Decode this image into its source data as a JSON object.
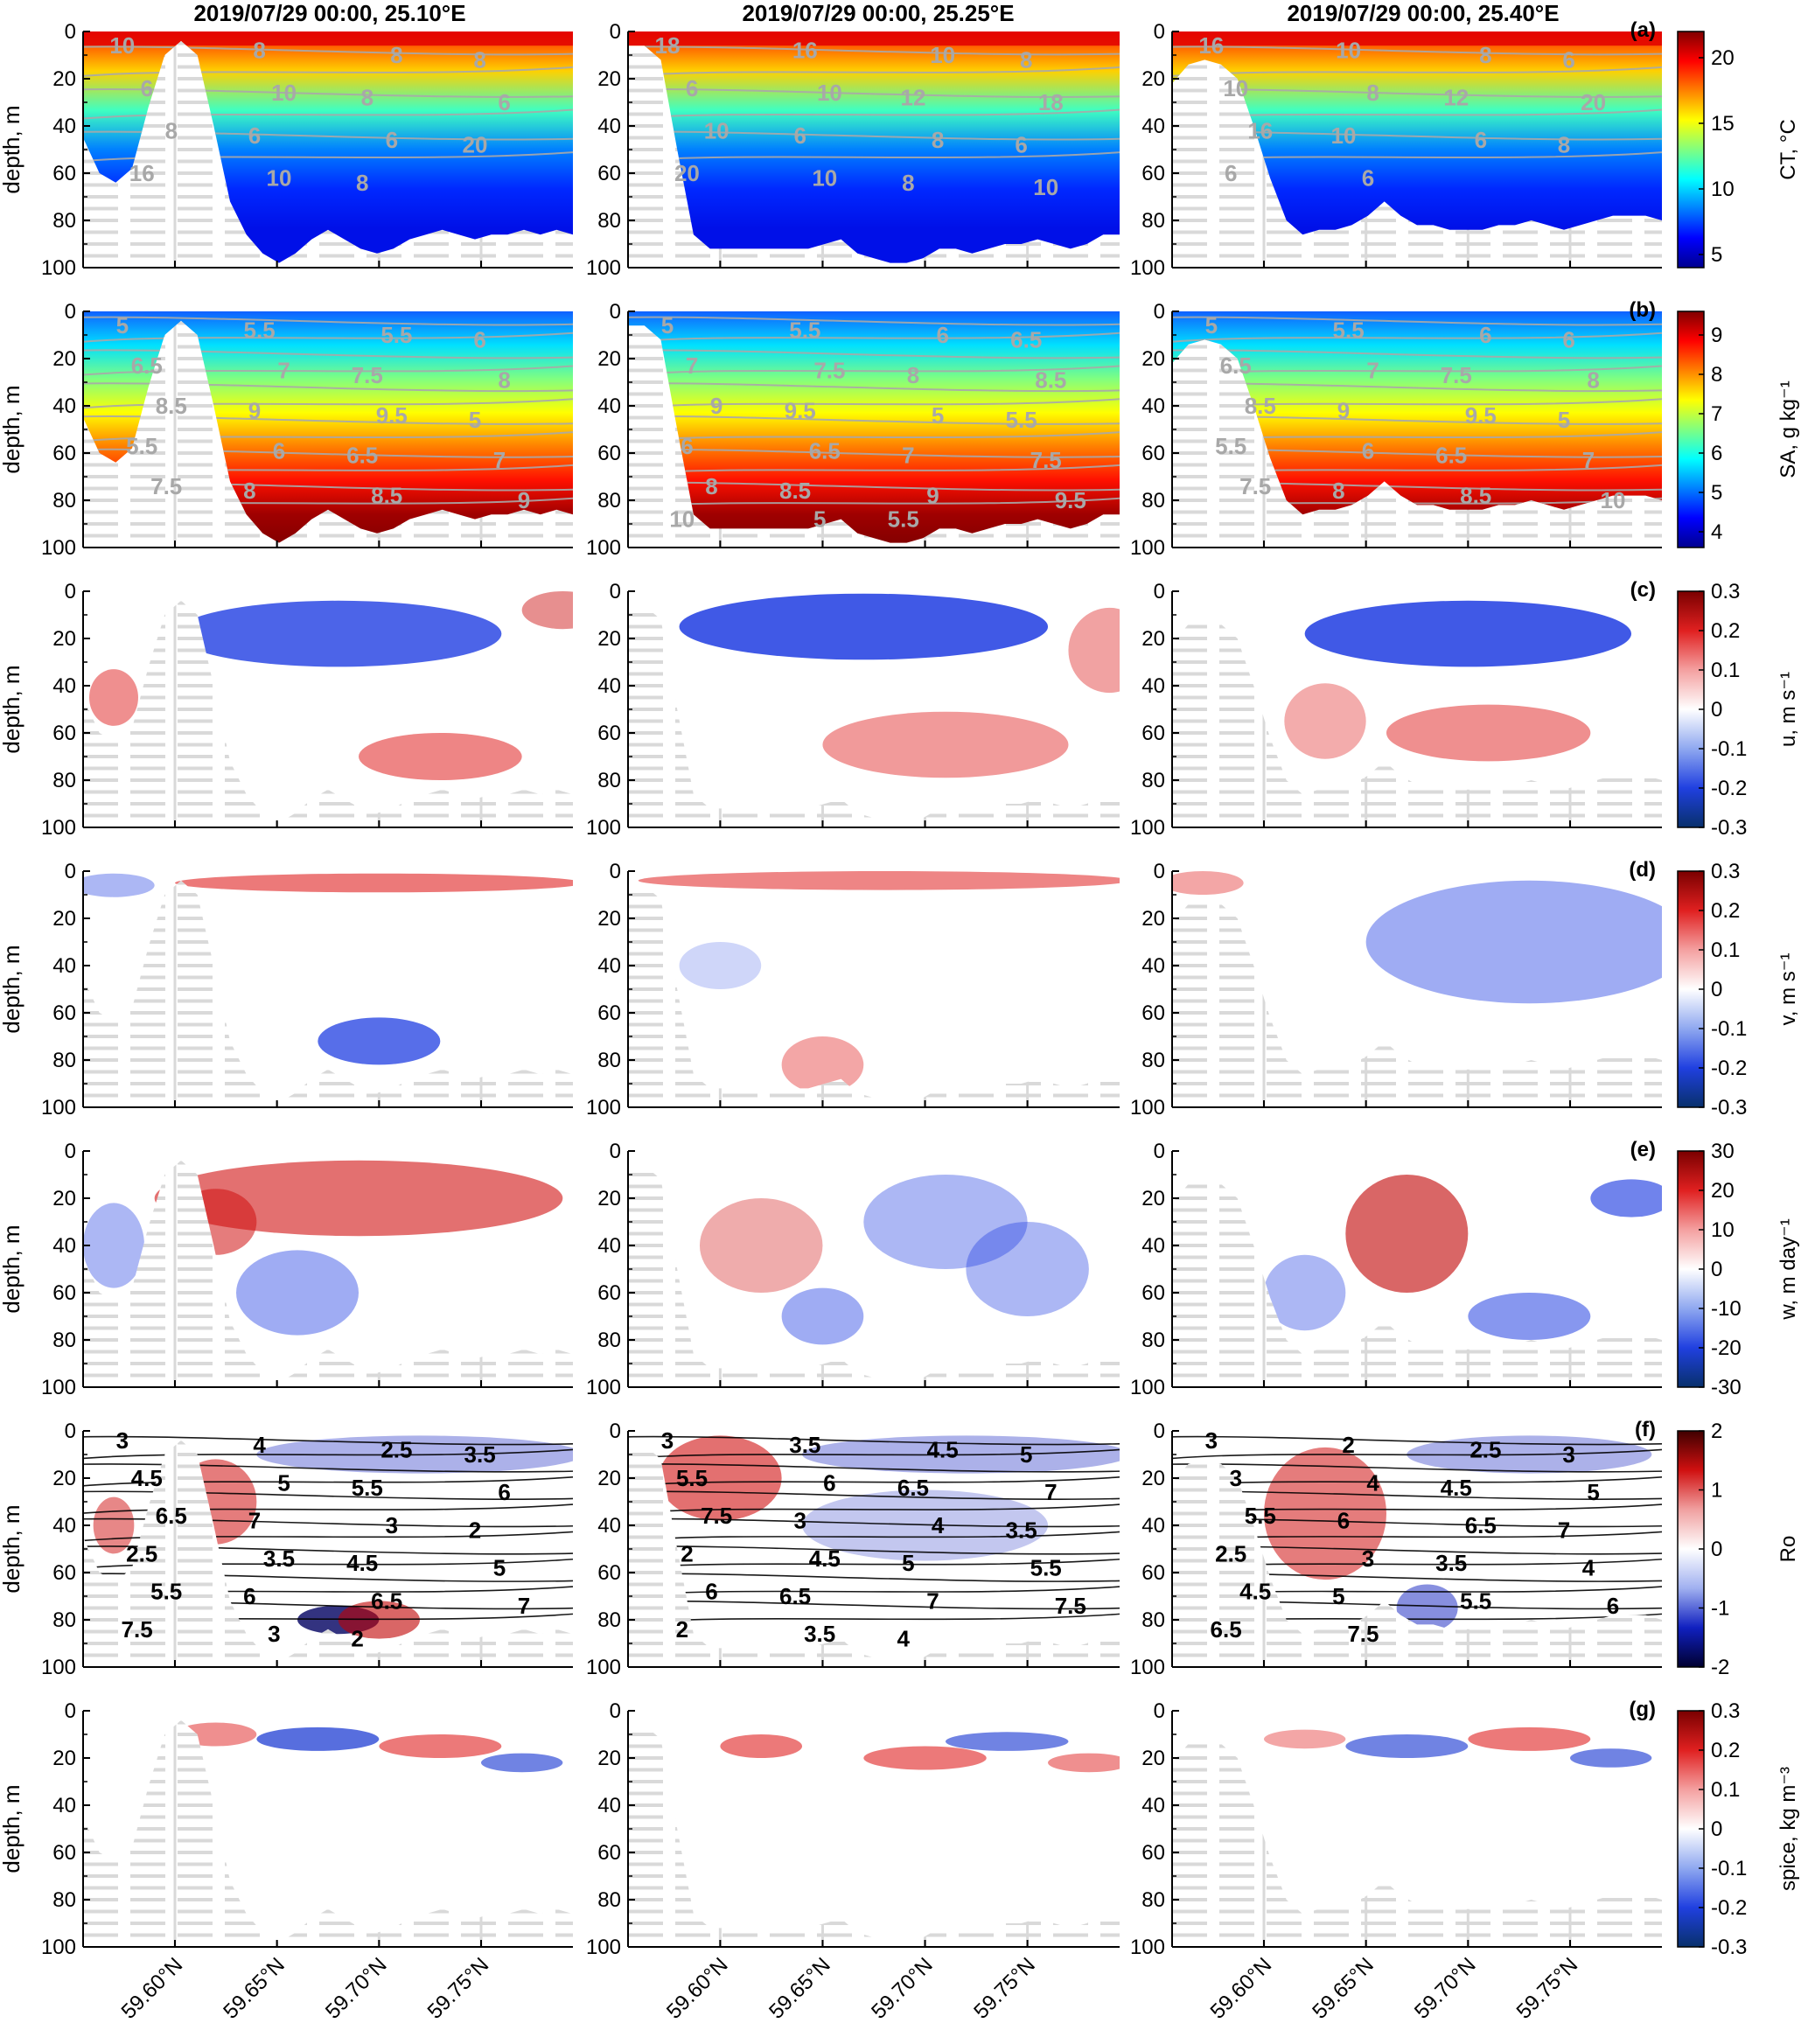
{
  "figure": {
    "columns": [
      {
        "title": "2019/07/29 00:00, 25.10°E"
      },
      {
        "title": "2019/07/29 00:00, 25.25°E"
      },
      {
        "title": "2019/07/29 00:00, 25.40°E"
      }
    ],
    "y_axis_label": "depth, m",
    "y_ticks": [
      "0",
      "20",
      "40",
      "60",
      "80",
      "100"
    ],
    "x_ticks": [
      "59.60°N",
      "59.65°N",
      "59.70°N",
      "59.75°N"
    ]
  },
  "chart_data": {
    "type": "heatmap",
    "x": {
      "units": "°N",
      "ticks": [
        59.6,
        59.65,
        59.7,
        59.75
      ],
      "range": [
        59.555,
        59.795
      ]
    },
    "y": {
      "label": "depth, m",
      "range": [
        0,
        100
      ],
      "reversed": true,
      "ticks": [
        0,
        20,
        40,
        60,
        80,
        100
      ]
    },
    "bottom_depth_m": [
      [
        45,
        60,
        64,
        58,
        32,
        10,
        4,
        10,
        40,
        72,
        86,
        94,
        98,
        94,
        88,
        84,
        88,
        92,
        94,
        92,
        88,
        86,
        84,
        86,
        88,
        86,
        86,
        84,
        86,
        84,
        86
      ],
      [
        6,
        6,
        12,
        50,
        86,
        92,
        92,
        92,
        92,
        92,
        92,
        92,
        90,
        88,
        94,
        96,
        98,
        98,
        96,
        92,
        92,
        94,
        92,
        90,
        90,
        88,
        90,
        92,
        90,
        86,
        86
      ],
      [
        22,
        14,
        12,
        14,
        20,
        40,
        62,
        80,
        86,
        84,
        84,
        82,
        78,
        72,
        78,
        82,
        82,
        84,
        84,
        84,
        82,
        82,
        80,
        82,
        84,
        82,
        80,
        78,
        78,
        78,
        80
      ]
    ],
    "panels": [
      {
        "tag": "(a)",
        "variable": "CT",
        "colorbar_label": "CT, °C",
        "colorbar_ticks": [
          "5",
          "10",
          "15",
          "20"
        ],
        "colorbar_range": [
          4,
          22
        ],
        "colormap": "jet",
        "contour_labels": [
          [
            "10",
            "8",
            "8",
            "8",
            "6",
            "10",
            "8",
            "6",
            "8",
            "6",
            "6",
            "20",
            "16",
            "10",
            "8"
          ],
          [
            "18",
            "16",
            "10",
            "8",
            "6",
            "10",
            "12",
            "18",
            "10",
            "6",
            "8",
            "6",
            "20",
            "10",
            "8",
            "10"
          ],
          [
            "16",
            "10",
            "8",
            "6",
            "10",
            "8",
            "12",
            "20",
            "16",
            "10",
            "6",
            "8",
            "6",
            "6"
          ]
        ]
      },
      {
        "tag": "(b)",
        "variable": "SA",
        "colorbar_label": "SA, g kg⁻¹",
        "colorbar_ticks": [
          "4",
          "5",
          "6",
          "7",
          "8",
          "9"
        ],
        "colorbar_range": [
          3.6,
          9.6
        ],
        "colormap": "jet",
        "contour_labels": [
          [
            "5",
            "5.5",
            "5.5",
            "6",
            "6.5",
            "7",
            "7.5",
            "8",
            "8.5",
            "9",
            "9.5",
            "5",
            "5.5",
            "6",
            "6.5",
            "7",
            "7.5",
            "8",
            "8.5",
            "9"
          ],
          [
            "5",
            "5.5",
            "6",
            "6.5",
            "7",
            "7.5",
            "8",
            "8.5",
            "9",
            "9.5",
            "5",
            "5.5",
            "6",
            "6.5",
            "7",
            "7.5",
            "8",
            "8.5",
            "9",
            "9.5",
            "10",
            "5",
            "5.5"
          ],
          [
            "5",
            "5.5",
            "6",
            "6",
            "6.5",
            "7",
            "7.5",
            "8",
            "8.5",
            "9",
            "9.5",
            "5",
            "5.5",
            "6",
            "6.5",
            "7",
            "7.5",
            "8",
            "8.5",
            "10"
          ]
        ]
      },
      {
        "tag": "(c)",
        "variable": "u",
        "colorbar_label": "u, m s⁻¹",
        "colorbar_ticks": [
          "0.3",
          "0.2",
          "0.1",
          "0",
          "-0.1",
          "-0.2",
          "-0.3"
        ],
        "colorbar_range": [
          -0.3,
          0.3
        ],
        "colormap": "blue-white-red"
      },
      {
        "tag": "(d)",
        "variable": "v",
        "colorbar_label": "v, m s⁻¹",
        "colorbar_ticks": [
          "0.3",
          "0.2",
          "0.1",
          "0",
          "-0.1",
          "-0.2",
          "-0.3"
        ],
        "colorbar_range": [
          -0.3,
          0.3
        ],
        "colormap": "blue-white-red"
      },
      {
        "tag": "(e)",
        "variable": "w",
        "colorbar_label": "w, m day⁻¹",
        "colorbar_ticks": [
          "30",
          "20",
          "10",
          "0",
          "-10",
          "-20",
          "-30"
        ],
        "colorbar_range": [
          -30,
          30
        ],
        "colormap": "blue-white-red"
      },
      {
        "tag": "(f)",
        "variable": "Ro",
        "colorbar_label": "Ro",
        "colorbar_ticks": [
          "2",
          "1",
          "0",
          "-1",
          "-2"
        ],
        "colorbar_range": [
          -2,
          2
        ],
        "colormap": "dark-blue-white-dark-red",
        "contour_labels": [
          [
            "3",
            "4",
            "2.5",
            "3.5",
            "4.5",
            "5",
            "5.5",
            "6",
            "6.5",
            "7",
            "3",
            "2",
            "2.5",
            "3.5",
            "4.5",
            "5",
            "5.5",
            "6",
            "6.5",
            "7",
            "7.5",
            "3",
            "2"
          ],
          [
            "3",
            "3.5",
            "4.5",
            "5",
            "5.5",
            "6",
            "6.5",
            "7",
            "7.5",
            "3",
            "4",
            "3.5",
            "2",
            "4.5",
            "5",
            "5.5",
            "6",
            "6.5",
            "7",
            "7.5",
            "2",
            "3.5",
            "4"
          ],
          [
            "3",
            "2",
            "2.5",
            "3",
            "3",
            "4",
            "4.5",
            "5",
            "5.5",
            "6",
            "6.5",
            "7",
            "2.5",
            "3",
            "3.5",
            "4",
            "4.5",
            "5",
            "5.5",
            "6",
            "6.5",
            "7.5"
          ]
        ]
      },
      {
        "tag": "(g)",
        "variable": "spice",
        "colorbar_label": "spice, kg m⁻³",
        "colorbar_ticks": [
          "0.3",
          "0.2",
          "0.1",
          "0",
          "-0.1",
          "-0.2",
          "-0.3"
        ],
        "colorbar_range": [
          -0.3,
          0.3
        ],
        "colormap": "blue-white-red"
      }
    ]
  },
  "colors": {
    "grid": "#d9d9d9",
    "land": "#ffffff",
    "contour_grey": "#a8a8a8",
    "contour_black": "#000000"
  }
}
